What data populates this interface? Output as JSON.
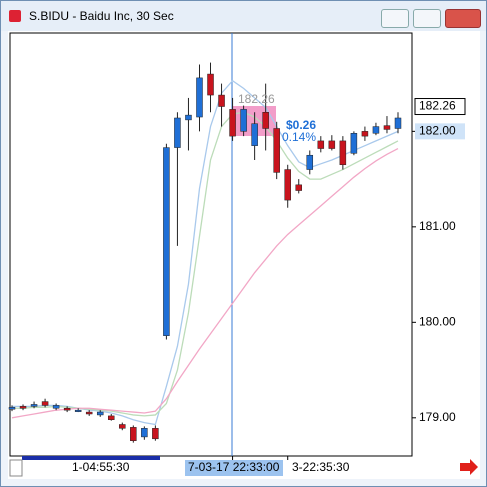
{
  "chart_data": {
    "type": "candlestick",
    "title": "S.BIDU - Baidu Inc, 30 Sec",
    "categories": [
      null,
      null,
      null,
      null,
      null,
      "1-04:55:30",
      null,
      null,
      null,
      null,
      null,
      null,
      null,
      null,
      null,
      null,
      null,
      null,
      null,
      null,
      "7-03-17 22:33:00",
      null,
      null,
      null,
      null,
      "3-22:35:30",
      null,
      null,
      null,
      null,
      null,
      null,
      null,
      null,
      null,
      null
    ],
    "open": [
      179.09,
      179.12,
      179.12,
      179.17,
      179.1,
      179.1,
      179.08,
      179.06,
      179.03,
      179.02,
      178.93,
      178.9,
      178.8,
      178.89,
      179.86,
      181.83,
      182.12,
      182.15,
      182.6,
      182.38,
      182.23,
      182.0,
      181.85,
      182.2,
      182.03,
      181.6,
      181.44,
      181.6,
      181.9,
      181.9,
      181.9,
      181.77,
      182.0,
      181.98,
      182.06,
      182.03
    ],
    "high": [
      179.13,
      179.14,
      179.17,
      179.2,
      179.15,
      179.12,
      179.1,
      179.08,
      179.08,
      179.04,
      178.95,
      178.92,
      178.91,
      178.92,
      181.87,
      182.2,
      182.35,
      182.7,
      182.72,
      182.5,
      182.35,
      182.27,
      182.2,
      182.5,
      182.1,
      181.65,
      181.5,
      181.8,
      181.95,
      181.96,
      181.95,
      182.0,
      182.05,
      182.09,
      182.16,
      182.2
    ],
    "low": [
      179.07,
      179.08,
      179.1,
      179.11,
      179.08,
      179.06,
      179.06,
      179.02,
      179.01,
      178.97,
      178.87,
      178.74,
      178.77,
      178.76,
      179.82,
      180.8,
      181.8,
      182.0,
      182.2,
      182.05,
      181.9,
      181.95,
      181.7,
      181.8,
      181.5,
      181.2,
      181.35,
      181.55,
      181.78,
      181.8,
      181.6,
      181.75,
      181.9,
      181.96,
      181.98,
      181.98
    ],
    "close": [
      179.11,
      179.1,
      179.14,
      179.13,
      179.13,
      179.08,
      179.08,
      179.04,
      179.06,
      178.98,
      178.89,
      178.76,
      178.89,
      178.78,
      181.83,
      182.14,
      182.17,
      182.56,
      182.38,
      182.26,
      181.95,
      182.23,
      182.08,
      182.03,
      181.57,
      181.28,
      181.38,
      181.75,
      181.82,
      181.82,
      181.65,
      181.98,
      181.95,
      182.05,
      182.02,
      182.14
    ],
    "up_color": "#1f6fd6",
    "down_color": "#c8141e",
    "lines": [
      {
        "color": "#a9c9ec",
        "values": [
          179.12,
          179.12,
          179.12,
          179.13,
          179.13,
          179.12,
          179.1,
          179.08,
          179.07,
          179.05,
          179.02,
          178.98,
          178.95,
          178.93,
          179.33,
          179.75,
          180.4,
          181.4,
          182.05,
          182.4,
          182.53,
          182.45,
          182.35,
          182.25,
          182.05,
          181.85,
          181.68,
          181.62,
          181.66,
          181.7,
          181.75,
          181.8,
          181.85,
          181.9,
          181.95,
          182.0
        ]
      },
      {
        "color": "#bcdcb9",
        "values": [
          179.1,
          179.1,
          179.11,
          179.11,
          179.12,
          179.11,
          179.1,
          179.09,
          179.08,
          179.07,
          179.05,
          179.03,
          179.02,
          179.03,
          179.15,
          179.5,
          180.1,
          180.9,
          181.7,
          182.05,
          182.18,
          182.2,
          182.15,
          182.05,
          181.9,
          181.72,
          181.58,
          181.5,
          181.5,
          181.55,
          181.6,
          181.66,
          181.72,
          181.78,
          181.84,
          181.9
        ]
      },
      {
        "color": "#f2a7c6",
        "values": [
          179.0,
          179.02,
          179.04,
          179.06,
          179.08,
          179.09,
          179.1,
          179.1,
          179.09,
          179.08,
          179.07,
          179.06,
          179.05,
          179.07,
          179.2,
          179.38,
          179.55,
          179.72,
          179.88,
          180.04,
          180.2,
          180.36,
          180.52,
          180.66,
          180.8,
          180.92,
          181.02,
          181.12,
          181.22,
          181.32,
          181.42,
          181.52,
          181.61,
          181.69,
          181.76,
          181.82
        ]
      }
    ],
    "ylim": [
      178.6,
      183.03
    ],
    "yticks": [
      {
        "value": 179,
        "label": "179.00"
      },
      {
        "value": 180,
        "label": "180.00"
      },
      {
        "value": 181,
        "label": "181.00"
      },
      {
        "value": 182,
        "label": "182.00"
      }
    ],
    "price_markers": [
      {
        "value": 182.26,
        "label": "182.26",
        "color": "#ffffff"
      },
      {
        "value": 182,
        "label": "182.00",
        "color": "#cfe3f8"
      }
    ],
    "annotations": [
      "182.26",
      "$0.26",
      "0.14%"
    ]
  }
}
